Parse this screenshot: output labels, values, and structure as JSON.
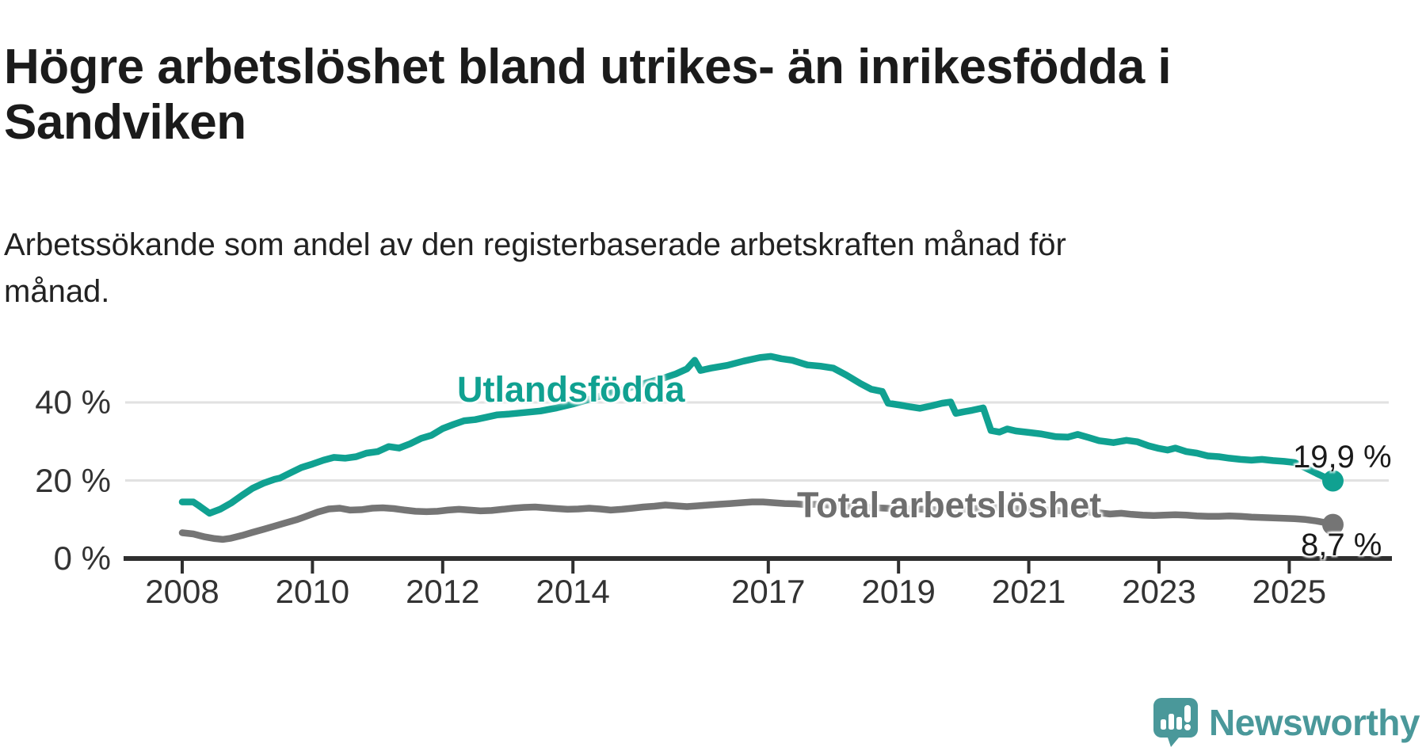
{
  "header": {
    "title": "Högre arbetslöshet bland utrikes- än inrikesfödda i Sandviken",
    "subtitle": "Arbetssökande som andel av den registerbaserade arbetskraften månad för månad."
  },
  "footer": {
    "brand": "Newsworthy",
    "brand_color": "#4a989a",
    "logo_icon": "speech-bubble-bar-chart-icon"
  },
  "chart_data": {
    "type": "line",
    "title": "Högre arbetslöshet bland utrikes- än inrikesfödda i Sandviken",
    "subtitle": "Arbetssökande som andel av den registerbaserade arbetskraften månad för månad.",
    "xlabel": "",
    "ylabel": "",
    "ylim": [
      0,
      57
    ],
    "xlim": [
      2008.0,
      2025.9
    ],
    "grid": "horizontal-only",
    "background": "#ffffff",
    "axis_color": "#2f2f2f",
    "gridline_color": "#e1e1e1",
    "tick_label_color": "#333333",
    "y_ticks": [
      {
        "value": 0,
        "label": "0 %"
      },
      {
        "value": 20,
        "label": "20 %"
      },
      {
        "value": 40,
        "label": "40 %"
      }
    ],
    "x_ticks": [
      {
        "year": 2008,
        "label": "2008"
      },
      {
        "year": 2010,
        "label": "2010"
      },
      {
        "year": 2012,
        "label": "2012"
      },
      {
        "year": 2014,
        "label": "2014"
      },
      {
        "year": 2017,
        "label": "2017"
      },
      {
        "year": 2019,
        "label": "2019"
      },
      {
        "year": 2021,
        "label": "2021"
      },
      {
        "year": 2023,
        "label": "2023"
      },
      {
        "year": 2025,
        "label": "2025"
      }
    ],
    "series": [
      {
        "name": "Utlandsfödda",
        "color": "#10a191",
        "end_value": 19.9,
        "end_label": "19,9 %",
        "points": [
          [
            2008.0,
            14.5
          ],
          [
            2008.17,
            14.5
          ],
          [
            2008.25,
            13.6
          ],
          [
            2008.42,
            11.6
          ],
          [
            2008.58,
            12.6
          ],
          [
            2008.75,
            14.2
          ],
          [
            2008.92,
            16.2
          ],
          [
            2009.08,
            18.0
          ],
          [
            2009.25,
            19.3
          ],
          [
            2009.42,
            20.3
          ],
          [
            2009.5,
            20.6
          ],
          [
            2009.67,
            22.0
          ],
          [
            2009.83,
            23.3
          ],
          [
            2010.0,
            24.2
          ],
          [
            2010.17,
            25.2
          ],
          [
            2010.33,
            25.9
          ],
          [
            2010.5,
            25.7
          ],
          [
            2010.67,
            26.1
          ],
          [
            2010.83,
            27.0
          ],
          [
            2011.0,
            27.4
          ],
          [
            2011.17,
            28.7
          ],
          [
            2011.33,
            28.3
          ],
          [
            2011.5,
            29.4
          ],
          [
            2011.67,
            30.8
          ],
          [
            2011.83,
            31.6
          ],
          [
            2012.0,
            33.3
          ],
          [
            2012.17,
            34.4
          ],
          [
            2012.33,
            35.3
          ],
          [
            2012.5,
            35.6
          ],
          [
            2012.67,
            36.2
          ],
          [
            2012.83,
            36.8
          ],
          [
            2013.0,
            37.0
          ],
          [
            2013.25,
            37.4
          ],
          [
            2013.5,
            37.8
          ],
          [
            2013.75,
            38.6
          ],
          [
            2014.0,
            39.6
          ],
          [
            2014.25,
            40.8
          ],
          [
            2014.5,
            42.0
          ],
          [
            2014.75,
            43.2
          ],
          [
            2015.0,
            44.4
          ],
          [
            2015.25,
            45.6
          ],
          [
            2015.42,
            46.4
          ],
          [
            2015.58,
            47.3
          ],
          [
            2015.75,
            48.6
          ],
          [
            2015.87,
            50.8
          ],
          [
            2015.96,
            48.2
          ],
          [
            2016.12,
            48.8
          ],
          [
            2016.37,
            49.5
          ],
          [
            2016.62,
            50.6
          ],
          [
            2016.87,
            51.5
          ],
          [
            2017.04,
            51.8
          ],
          [
            2017.2,
            51.2
          ],
          [
            2017.37,
            50.8
          ],
          [
            2017.6,
            49.6
          ],
          [
            2017.8,
            49.3
          ],
          [
            2018.0,
            48.8
          ],
          [
            2018.2,
            47.0
          ],
          [
            2018.42,
            44.8
          ],
          [
            2018.58,
            43.4
          ],
          [
            2018.75,
            42.8
          ],
          [
            2018.84,
            39.8
          ],
          [
            2019.0,
            39.4
          ],
          [
            2019.17,
            38.9
          ],
          [
            2019.33,
            38.5
          ],
          [
            2019.5,
            39.1
          ],
          [
            2019.67,
            39.8
          ],
          [
            2019.8,
            40.1
          ],
          [
            2019.88,
            37.2
          ],
          [
            2020.0,
            37.6
          ],
          [
            2020.13,
            38.0
          ],
          [
            2020.3,
            38.6
          ],
          [
            2020.42,
            32.8
          ],
          [
            2020.55,
            32.4
          ],
          [
            2020.67,
            33.2
          ],
          [
            2020.8,
            32.7
          ],
          [
            2021.0,
            32.3
          ],
          [
            2021.2,
            31.9
          ],
          [
            2021.42,
            31.2
          ],
          [
            2021.6,
            31.1
          ],
          [
            2021.75,
            31.8
          ],
          [
            2021.92,
            31.0
          ],
          [
            2022.08,
            30.2
          ],
          [
            2022.3,
            29.7
          ],
          [
            2022.5,
            30.3
          ],
          [
            2022.67,
            29.9
          ],
          [
            2022.84,
            28.9
          ],
          [
            2023.0,
            28.2
          ],
          [
            2023.13,
            27.8
          ],
          [
            2023.25,
            28.3
          ],
          [
            2023.42,
            27.4
          ],
          [
            2023.58,
            27.0
          ],
          [
            2023.75,
            26.3
          ],
          [
            2023.92,
            26.1
          ],
          [
            2024.08,
            25.7
          ],
          [
            2024.25,
            25.4
          ],
          [
            2024.42,
            25.2
          ],
          [
            2024.58,
            25.4
          ],
          [
            2024.75,
            25.1
          ],
          [
            2024.92,
            24.9
          ],
          [
            2025.08,
            24.6
          ],
          [
            2025.25,
            23.2
          ],
          [
            2025.42,
            21.8
          ],
          [
            2025.55,
            20.8
          ],
          [
            2025.67,
            19.9
          ]
        ]
      },
      {
        "name": "Total arbetslöshet",
        "color": "#757575",
        "end_value": 8.7,
        "end_label": "8,7 %",
        "points": [
          [
            2008.0,
            6.6
          ],
          [
            2008.17,
            6.3
          ],
          [
            2008.33,
            5.6
          ],
          [
            2008.5,
            5.1
          ],
          [
            2008.62,
            4.9
          ],
          [
            2008.75,
            5.2
          ],
          [
            2008.92,
            5.9
          ],
          [
            2009.08,
            6.7
          ],
          [
            2009.25,
            7.5
          ],
          [
            2009.42,
            8.3
          ],
          [
            2009.58,
            9.1
          ],
          [
            2009.75,
            9.9
          ],
          [
            2009.92,
            10.9
          ],
          [
            2010.08,
            11.9
          ],
          [
            2010.25,
            12.7
          ],
          [
            2010.42,
            12.9
          ],
          [
            2010.58,
            12.4
          ],
          [
            2010.75,
            12.5
          ],
          [
            2010.92,
            12.9
          ],
          [
            2011.08,
            13.0
          ],
          [
            2011.25,
            12.8
          ],
          [
            2011.42,
            12.4
          ],
          [
            2011.58,
            12.1
          ],
          [
            2011.75,
            12.0
          ],
          [
            2011.92,
            12.1
          ],
          [
            2012.08,
            12.4
          ],
          [
            2012.25,
            12.6
          ],
          [
            2012.42,
            12.4
          ],
          [
            2012.58,
            12.2
          ],
          [
            2012.75,
            12.3
          ],
          [
            2012.92,
            12.6
          ],
          [
            2013.08,
            12.9
          ],
          [
            2013.25,
            13.1
          ],
          [
            2013.42,
            13.2
          ],
          [
            2013.58,
            13.0
          ],
          [
            2013.75,
            12.8
          ],
          [
            2013.92,
            12.6
          ],
          [
            2014.08,
            12.7
          ],
          [
            2014.25,
            12.9
          ],
          [
            2014.42,
            12.7
          ],
          [
            2014.58,
            12.4
          ],
          [
            2014.75,
            12.6
          ],
          [
            2014.92,
            12.9
          ],
          [
            2015.08,
            13.2
          ],
          [
            2015.25,
            13.4
          ],
          [
            2015.42,
            13.7
          ],
          [
            2015.58,
            13.5
          ],
          [
            2015.75,
            13.3
          ],
          [
            2015.92,
            13.5
          ],
          [
            2016.08,
            13.7
          ],
          [
            2016.25,
            13.9
          ],
          [
            2016.42,
            14.1
          ],
          [
            2016.58,
            14.3
          ],
          [
            2016.75,
            14.5
          ],
          [
            2016.92,
            14.5
          ],
          [
            2017.08,
            14.3
          ],
          [
            2017.25,
            14.1
          ],
          [
            2017.42,
            14.0
          ],
          [
            2017.58,
            13.8
          ],
          [
            2017.75,
            13.9
          ],
          [
            2017.92,
            13.7
          ],
          [
            2018.17,
            13.4
          ],
          [
            2018.42,
            13.2
          ],
          [
            2018.67,
            13.0
          ],
          [
            2018.92,
            12.8
          ],
          [
            2019.17,
            12.7
          ],
          [
            2019.42,
            12.6
          ],
          [
            2019.67,
            12.4
          ],
          [
            2019.92,
            12.5
          ],
          [
            2020.17,
            12.8
          ],
          [
            2020.42,
            13.1
          ],
          [
            2020.67,
            12.9
          ],
          [
            2020.92,
            12.7
          ],
          [
            2021.17,
            12.5
          ],
          [
            2021.42,
            12.3
          ],
          [
            2021.67,
            12.1
          ],
          [
            2021.92,
            11.9
          ],
          [
            2022.08,
            11.7
          ],
          [
            2022.25,
            11.4
          ],
          [
            2022.42,
            11.6
          ],
          [
            2022.58,
            11.3
          ],
          [
            2022.75,
            11.1
          ],
          [
            2022.92,
            11.0
          ],
          [
            2023.08,
            11.1
          ],
          [
            2023.25,
            11.2
          ],
          [
            2023.42,
            11.1
          ],
          [
            2023.58,
            10.9
          ],
          [
            2023.75,
            10.8
          ],
          [
            2023.92,
            10.8
          ],
          [
            2024.08,
            10.9
          ],
          [
            2024.25,
            10.8
          ],
          [
            2024.42,
            10.6
          ],
          [
            2024.58,
            10.5
          ],
          [
            2024.75,
            10.4
          ],
          [
            2024.92,
            10.3
          ],
          [
            2025.08,
            10.2
          ],
          [
            2025.25,
            10.0
          ],
          [
            2025.42,
            9.6
          ],
          [
            2025.55,
            9.2
          ],
          [
            2025.67,
            8.7
          ]
        ]
      }
    ]
  }
}
